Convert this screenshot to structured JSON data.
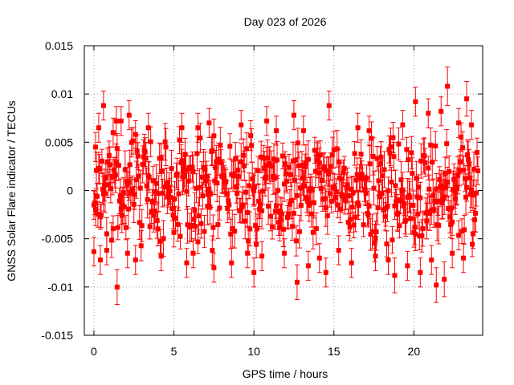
{
  "chart_data": {
    "type": "scatter",
    "title": "Day 023 of 2026",
    "xlabel": "GPS time / hours",
    "ylabel": "GNSS Solar Flare indicator / TECUs",
    "xlim": [
      -0.6,
      24.3
    ],
    "ylim": [
      -0.015,
      0.015
    ],
    "x_ticks": [
      0,
      5,
      10,
      15,
      20
    ],
    "x_tick_labels": [
      "0",
      "5",
      "10",
      "15",
      "20"
    ],
    "y_ticks": [
      -0.015,
      -0.01,
      -0.005,
      0,
      0.005,
      0.01,
      0.015
    ],
    "y_tick_labels": [
      "-0.015",
      "-0.01",
      "-0.005",
      "0",
      "0.005",
      "0.01",
      "0.015"
    ],
    "grid": true,
    "colors": {
      "series": "#ff0000",
      "grid": "#a0a0a0",
      "axes": "#000000"
    },
    "series": [
      {
        "style": "points-with-errorbars",
        "points": [
          {
            "x": 0.0,
            "y": -0.0015,
            "err": 0.0015
          },
          {
            "x": 0.1,
            "y": 0.0045,
            "err": 0.0015
          },
          {
            "x": 0.3,
            "y": 0.0065,
            "err": 0.0015
          },
          {
            "x": 0.4,
            "y": -0.0072,
            "err": 0.0015
          },
          {
            "x": 0.6,
            "y": 0.0088,
            "err": 0.0015
          },
          {
            "x": 0.8,
            "y": -0.0062,
            "err": 0.0015
          },
          {
            "x": 1.2,
            "y": 0.006,
            "err": 0.0015
          },
          {
            "x": 1.4,
            "y": 0.0072,
            "err": 0.0015
          },
          {
            "x": 1.45,
            "y": -0.01,
            "err": 0.0018
          },
          {
            "x": 1.7,
            "y": 0.0072,
            "err": 0.0015
          },
          {
            "x": 2.1,
            "y": -0.0065,
            "err": 0.0015
          },
          {
            "x": 2.2,
            "y": 0.0078,
            "err": 0.0015
          },
          {
            "x": 2.6,
            "y": -0.0072,
            "err": 0.0015
          },
          {
            "x": 3.4,
            "y": 0.0065,
            "err": 0.0015
          },
          {
            "x": 4.2,
            "y": -0.0068,
            "err": 0.0015
          },
          {
            "x": 5.5,
            "y": 0.0065,
            "err": 0.0015
          },
          {
            "x": 5.8,
            "y": -0.0075,
            "err": 0.0015
          },
          {
            "x": 6.2,
            "y": -0.0065,
            "err": 0.0015
          },
          {
            "x": 6.5,
            "y": 0.0065,
            "err": 0.0015
          },
          {
            "x": 7.2,
            "y": 0.007,
            "err": 0.0015
          },
          {
            "x": 7.4,
            "y": -0.0062,
            "err": 0.0015
          },
          {
            "x": 7.5,
            "y": -0.008,
            "err": 0.0015
          },
          {
            "x": 8.6,
            "y": -0.0075,
            "err": 0.0015
          },
          {
            "x": 9.2,
            "y": 0.0068,
            "err": 0.0015
          },
          {
            "x": 9.6,
            "y": -0.0065,
            "err": 0.0015
          },
          {
            "x": 10.0,
            "y": -0.0085,
            "err": 0.0015
          },
          {
            "x": 10.5,
            "y": -0.0068,
            "err": 0.0015
          },
          {
            "x": 10.8,
            "y": 0.0072,
            "err": 0.0015
          },
          {
            "x": 11.4,
            "y": 0.0062,
            "err": 0.0015
          },
          {
            "x": 11.9,
            "y": -0.0065,
            "err": 0.0015
          },
          {
            "x": 12.5,
            "y": 0.0078,
            "err": 0.0015
          },
          {
            "x": 12.7,
            "y": -0.0095,
            "err": 0.0018
          },
          {
            "x": 13.1,
            "y": 0.0062,
            "err": 0.0015
          },
          {
            "x": 13.4,
            "y": -0.0078,
            "err": 0.0015
          },
          {
            "x": 14.1,
            "y": -0.007,
            "err": 0.0015
          },
          {
            "x": 14.5,
            "y": -0.0085,
            "err": 0.0015
          },
          {
            "x": 14.7,
            "y": 0.0088,
            "err": 0.0015
          },
          {
            "x": 15.3,
            "y": -0.0062,
            "err": 0.0015
          },
          {
            "x": 16.1,
            "y": -0.0075,
            "err": 0.0015
          },
          {
            "x": 16.5,
            "y": 0.0065,
            "err": 0.0015
          },
          {
            "x": 17.2,
            "y": 0.0062,
            "err": 0.0015
          },
          {
            "x": 17.6,
            "y": -0.0068,
            "err": 0.0015
          },
          {
            "x": 18.4,
            "y": -0.0072,
            "err": 0.0015
          },
          {
            "x": 18.8,
            "y": -0.0088,
            "err": 0.0018
          },
          {
            "x": 19.3,
            "y": 0.0068,
            "err": 0.0015
          },
          {
            "x": 19.6,
            "y": -0.0078,
            "err": 0.0015
          },
          {
            "x": 20.1,
            "y": 0.0092,
            "err": 0.0015
          },
          {
            "x": 20.4,
            "y": -0.0085,
            "err": 0.0015
          },
          {
            "x": 20.9,
            "y": 0.008,
            "err": 0.0015
          },
          {
            "x": 21.1,
            "y": -0.0072,
            "err": 0.0015
          },
          {
            "x": 21.4,
            "y": -0.0098,
            "err": 0.0018
          },
          {
            "x": 21.7,
            "y": 0.0082,
            "err": 0.0015
          },
          {
            "x": 21.9,
            "y": -0.0092,
            "err": 0.0018
          },
          {
            "x": 22.1,
            "y": 0.0108,
            "err": 0.002
          },
          {
            "x": 22.4,
            "y": -0.0065,
            "err": 0.0015
          },
          {
            "x": 22.8,
            "y": 0.007,
            "err": 0.0015
          },
          {
            "x": 23.1,
            "y": -0.007,
            "err": 0.0015
          },
          {
            "x": 23.3,
            "y": 0.0095,
            "err": 0.0018
          },
          {
            "x": 23.6,
            "y": 0.0068,
            "err": 0.0015
          },
          {
            "x": 23.7,
            "y": -0.0045,
            "err": 0.0015
          }
        ],
        "dense_band": {
          "x_start": 0.0,
          "x_end": 24.0,
          "x_step": 0.05,
          "y_min": -0.0065,
          "y_max": 0.0065,
          "err": 0.0015,
          "seed": 23
        }
      }
    ]
  }
}
